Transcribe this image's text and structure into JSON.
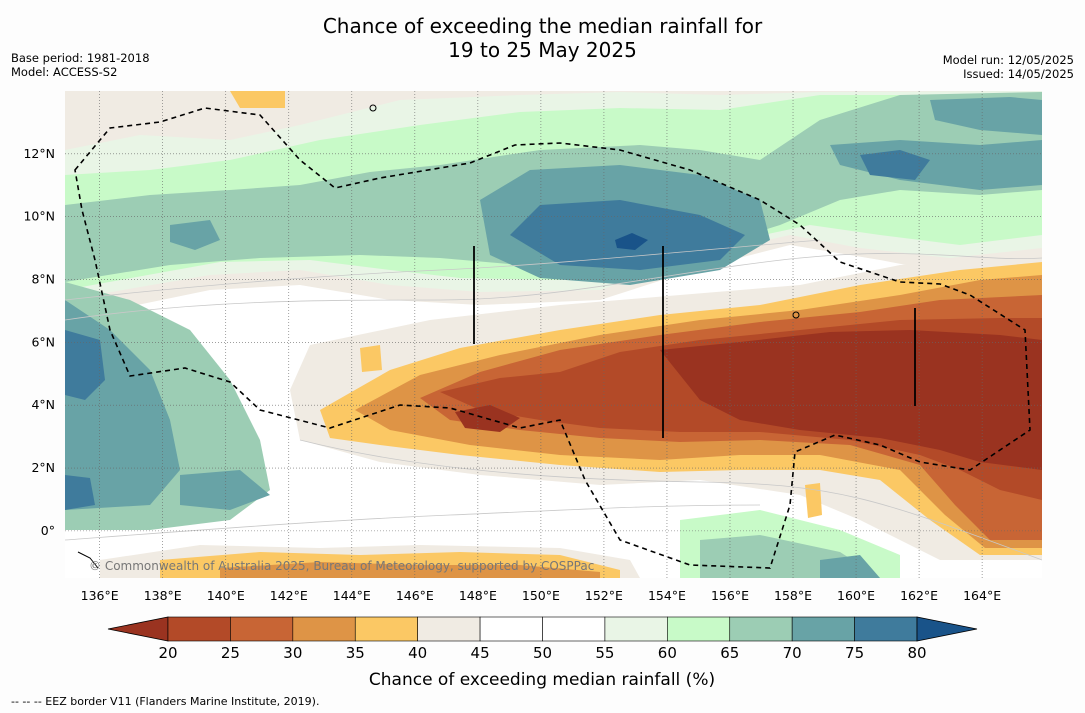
{
  "title_line1": "Chance of exceeding the median rainfall for",
  "title_line2": "19 to 25 May 2025",
  "base_period": "Base period: 1981-2018",
  "model": "Model: ACCESS-S2",
  "model_run": "Model run: 12/05/2025",
  "issued": "Issued: 14/05/2025",
  "copyright": "© Commonwealth of Australia 2025, Bureau of Meteorology, supported by COSPPac",
  "footnote": "--  --  -- EEZ border V11 (Flanders Marine Institute, 2019).",
  "map_data": {
    "lon_ticks": [
      "136°E",
      "138°E",
      "140°E",
      "142°E",
      "144°E",
      "146°E",
      "148°E",
      "150°E",
      "152°E",
      "154°E",
      "156°E",
      "158°E",
      "160°E",
      "162°E",
      "164°E"
    ],
    "lat_ticks": [
      "12°N",
      "10°N",
      "8°N",
      "6°N",
      "4°N",
      "2°N",
      "0°"
    ],
    "lon_values": [
      136,
      138,
      140,
      142,
      144,
      146,
      148,
      150,
      152,
      154,
      156,
      158,
      160,
      162,
      164
    ],
    "lat_values": [
      12,
      10,
      8,
      6,
      4,
      2,
      0
    ],
    "lon_range": [
      134.9,
      165.9
    ],
    "lat_range": [
      -1.5,
      14
    ]
  },
  "legend": {
    "label": "Chance of exceeding median rainfall (%)",
    "ticks": [
      "20",
      "25",
      "30",
      "35",
      "40",
      "45",
      "50",
      "55",
      "60",
      "65",
      "70",
      "75",
      "80"
    ],
    "colors": [
      "#9a3320",
      "#b34a28",
      "#c86535",
      "#de9446",
      "#fbc864",
      "#f0ebe3",
      "#ffffff",
      "#ffffff",
      "#e9f5e6",
      "#c8fac8",
      "#9ccdb4",
      "#68a3a6",
      "#3f7b9c",
      "#195389"
    ]
  }
}
